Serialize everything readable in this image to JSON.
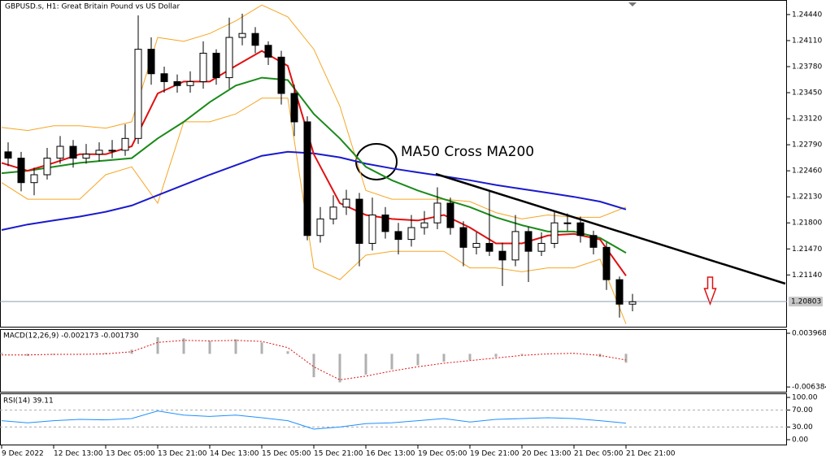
{
  "chart_data": [
    {
      "type": "candlestick",
      "title": "GBPUSD.s, H1:  Great Britain Pound vs US Dollar",
      "x": [
        2,
        6,
        10,
        14,
        18,
        22,
        26,
        30,
        34,
        38,
        42,
        46,
        50,
        54,
        58,
        62,
        66,
        70,
        74,
        78,
        82,
        86,
        90,
        94,
        98,
        102,
        106,
        110,
        114,
        118,
        122,
        126,
        130,
        134,
        138,
        142,
        146,
        150,
        154,
        158,
        162,
        166,
        170,
        174,
        178,
        182,
        186,
        190,
        194
      ],
      "open": [
        1.227,
        1.2262,
        1.2231,
        1.2241,
        1.2262,
        1.2277,
        1.2262,
        1.2267,
        1.2272,
        1.2272,
        1.2287,
        1.24,
        1.2369,
        1.2359,
        1.2354,
        1.2359,
        1.2395,
        1.2364,
        1.2415,
        1.242,
        1.2405,
        1.239,
        1.2344,
        1.2308,
        1.2164,
        1.2185,
        1.22,
        1.221,
        1.2154,
        1.219,
        1.2169,
        1.2159,
        1.2174,
        1.218,
        1.2205,
        1.2174,
        1.2149,
        1.2154,
        1.2144,
        1.2133,
        1.2169,
        1.2144,
        1.2154,
        1.218,
        1.218,
        1.2164,
        1.2149,
        1.2108,
        1.2077
      ],
      "high": [
        1.2282,
        1.227,
        1.225,
        1.2275,
        1.229,
        1.2285,
        1.228,
        1.2282,
        1.2285,
        1.2305,
        1.2443,
        1.2415,
        1.2378,
        1.2368,
        1.2372,
        1.241,
        1.24,
        1.244,
        1.2445,
        1.2428,
        1.241,
        1.2398,
        1.2355,
        1.2315,
        1.22,
        1.2215,
        1.2222,
        1.2218,
        1.2212,
        1.22,
        1.218,
        1.219,
        1.2195,
        1.2225,
        1.2212,
        1.2182,
        1.2168,
        1.222,
        1.2155,
        1.219,
        1.2175,
        1.2168,
        1.2195,
        1.2192,
        1.2188,
        1.217,
        1.2155,
        1.2112,
        1.209
      ],
      "low": [
        1.2252,
        1.222,
        1.2215,
        1.2235,
        1.2255,
        1.225,
        1.2255,
        1.2258,
        1.2262,
        1.2265,
        1.228,
        1.2355,
        1.2345,
        1.2345,
        1.2345,
        1.235,
        1.2355,
        1.235,
        1.2405,
        1.2395,
        1.238,
        1.233,
        1.229,
        1.2158,
        1.2155,
        1.2178,
        1.219,
        1.2125,
        1.2145,
        1.216,
        1.214,
        1.215,
        1.2165,
        1.2172,
        1.2165,
        1.2125,
        1.214,
        1.2138,
        1.21,
        1.2125,
        1.2105,
        1.2138,
        1.2148,
        1.217,
        1.2155,
        1.214,
        1.2095,
        1.206,
        1.2068
      ],
      "close": [
        1.2262,
        1.2231,
        1.2241,
        1.2262,
        1.2277,
        1.2262,
        1.2267,
        1.2272,
        1.2272,
        1.2287,
        1.24,
        1.2369,
        1.2359,
        1.2354,
        1.2359,
        1.2395,
        1.2364,
        1.2415,
        1.242,
        1.2405,
        1.239,
        1.2344,
        1.2308,
        1.2164,
        1.2185,
        1.22,
        1.221,
        1.2154,
        1.219,
        1.2169,
        1.2159,
        1.2174,
        1.218,
        1.2205,
        1.2174,
        1.2149,
        1.2154,
        1.2144,
        1.2133,
        1.2169,
        1.2144,
        1.2154,
        1.218,
        1.218,
        1.2164,
        1.2149,
        1.2108,
        1.2077,
        1.208
      ],
      "xlim": [
        -0.5,
        241.5
      ],
      "xticks": [
        {
          "value": 0,
          "label": "9 Dec 2022"
        },
        {
          "value": 16,
          "label": "12 Dec 13:00"
        },
        {
          "value": 32,
          "label": "13 Dec 05:00"
        },
        {
          "value": 48,
          "label": "13 Dec 21:00"
        },
        {
          "value": 64,
          "label": "14 Dec 13:00"
        },
        {
          "value": 80,
          "label": "15 Dec 05:00"
        },
        {
          "value": 96,
          "label": "15 Dec 21:00"
        },
        {
          "value": 112,
          "label": "16 Dec 13:00"
        },
        {
          "value": 128,
          "label": "19 Dec 05:00"
        },
        {
          "value": 144,
          "label": "19 Dec 21:00"
        },
        {
          "value": 160,
          "label": "20 Dec 13:00"
        },
        {
          "value": 176,
          "label": "21 Dec 05:00"
        },
        {
          "value": 192,
          "label": "21 Dec 21:00"
        }
      ],
      "ylim": [
        1.20484,
        1.24614
      ],
      "yticks": [
        {
          "value": 1.2444,
          "label": "1.24440"
        },
        {
          "value": 1.2411,
          "label": "1.24110"
        },
        {
          "value": 1.2378,
          "label": "1.23780"
        },
        {
          "value": 1.2345,
          "label": "1.23450"
        },
        {
          "value": 1.2312,
          "label": "1.23120"
        },
        {
          "value": 1.2279,
          "label": "1.22790"
        },
        {
          "value": 1.2246,
          "label": "1.22460"
        },
        {
          "value": 1.2213,
          "label": "1.22130"
        },
        {
          "value": 1.218,
          "label": "1.21800"
        },
        {
          "value": 1.2147,
          "label": "1.21470"
        },
        {
          "value": 1.2114,
          "label": "1.21140"
        }
      ],
      "current_price": 1.20803,
      "overlays": {
        "x": [
          0,
          8,
          16,
          24,
          32,
          40,
          48,
          56,
          64,
          72,
          80,
          88,
          96,
          104,
          112,
          120,
          128,
          136,
          144,
          152,
          160,
          168,
          176,
          184,
          192
        ],
        "series": [
          {
            "color": "#f5a623",
            "values": [
              1.2301,
              1.2297,
              1.2303,
              1.2303,
              1.23,
              1.2308,
              1.2415,
              1.241,
              1.242,
              1.2436,
              1.2456,
              1.2441,
              1.24,
              1.2328,
              1.2221,
              1.221,
              1.221,
              1.221,
              1.2207,
              1.2193,
              1.2185,
              1.219,
              1.2187,
              1.2187,
              1.22
            ]
          },
          {
            "color": "#f5a623",
            "values": [
              1.2231,
              1.221,
              1.221,
              1.221,
              1.2241,
              1.2251,
              1.2205,
              1.2308,
              1.2308,
              1.2318,
              1.2338,
              1.2338,
              1.2123,
              1.2108,
              1.2139,
              1.2144,
              1.2144,
              1.2144,
              1.2123,
              1.2123,
              1.2118,
              1.2123,
              1.2123,
              1.2134,
              1.2052
            ]
          },
          {
            "color": "#1a1acc",
            "values": [
              1.2171,
              1.2178,
              1.2183,
              1.2188,
              1.2194,
              1.2202,
              1.2215,
              1.2228,
              1.2241,
              1.2253,
              1.2265,
              1.227,
              1.2268,
              1.2263,
              1.2255,
              1.2249,
              1.2244,
              1.2239,
              1.2234,
              1.2228,
              1.2223,
              1.2218,
              1.2213,
              1.2207,
              1.2197
            ]
          },
          {
            "color": "#1a8a1a",
            "values": [
              1.2243,
              1.2246,
              1.2251,
              1.2256,
              1.2259,
              1.2262,
              1.2287,
              1.2308,
              1.2333,
              1.2354,
              1.2364,
              1.2361,
              1.2318,
              1.2287,
              1.2251,
              1.2234,
              1.2221,
              1.221,
              1.22,
              1.2187,
              1.2177,
              1.2169,
              1.2169,
              1.2161,
              1.2142
            ]
          },
          {
            "color": "#e01010",
            "values": [
              1.2256,
              1.2246,
              1.2256,
              1.2267,
              1.2267,
              1.2277,
              1.2344,
              1.2359,
              1.2359,
              1.2379,
              1.2398,
              1.2379,
              1.2267,
              1.2205,
              1.219,
              1.2185,
              1.2183,
              1.219,
              1.2174,
              1.2154,
              1.2154,
              1.2164,
              1.2166,
              1.2159,
              1.2113
            ]
          }
        ]
      },
      "trendline": {
        "x": [
          133.5,
          241
        ],
        "y": [
          1.2242,
          1.2103
        ]
      },
      "annotation": "MA50 Cross MA200"
    },
    {
      "type": "macd",
      "label": "MACD(12,26,9) -0.002173 -0.001730",
      "x": [
        0,
        8,
        16,
        24,
        32,
        40,
        48,
        56,
        64,
        72,
        80,
        88,
        96,
        104,
        112,
        120,
        128,
        136,
        144,
        152,
        160,
        168,
        176,
        184,
        192
      ],
      "xlim": [
        -0.5,
        241.5
      ],
      "histogram": {
        "color": "#b0b0b0",
        "values": [
          0.0002,
          -0.0004,
          -0.0002,
          0.0,
          0.0002,
          0.0008,
          0.0032,
          0.003,
          0.0025,
          0.0028,
          0.0022,
          0.0005,
          -0.0045,
          -0.0055,
          -0.004,
          -0.003,
          -0.0022,
          -0.0015,
          -0.0012,
          -0.0006,
          -0.0002,
          0.0,
          0.0001,
          -0.0006,
          -0.0017
        ]
      },
      "signal": {
        "color": "#e01010",
        "values": [
          -0.0002,
          -0.0002,
          -0.0001,
          -0.0001,
          0.0,
          0.0004,
          0.0022,
          0.0026,
          0.0025,
          0.0026,
          0.0024,
          0.0012,
          -0.0025,
          -0.005,
          -0.0043,
          -0.0033,
          -0.0025,
          -0.0018,
          -0.0013,
          -0.0008,
          -0.0003,
          0.0,
          0.0001,
          -0.0003,
          -0.0012
        ]
      },
      "ylim": [
        -0.0073,
        0.0046
      ],
      "yticks": [
        0.003968,
        -0.006384
      ]
    },
    {
      "type": "rsi",
      "label": "RSI(14) 39.11",
      "x": [
        0,
        8,
        16,
        24,
        32,
        40,
        48,
        56,
        64,
        72,
        80,
        88,
        96,
        104,
        112,
        120,
        128,
        136,
        144,
        152,
        160,
        168,
        176,
        184,
        192
      ],
      "xlim": [
        -0.5,
        241.5
      ],
      "values": [
        45,
        40,
        45,
        48,
        47,
        50,
        68,
        58,
        55,
        58,
        52,
        45,
        25,
        30,
        38,
        40,
        45,
        50,
        42,
        48,
        50,
        52,
        50,
        45,
        39.11
      ],
      "color": "#1e90ff",
      "ylim": [
        0,
        100
      ],
      "yticks": [
        {
          "value": 100,
          "label": "100.00"
        },
        {
          "value": 70,
          "label": "70.00"
        },
        {
          "value": 30,
          "label": "30.00"
        },
        {
          "value": 0,
          "label": "0.00"
        }
      ],
      "levels": [
        70,
        30
      ]
    }
  ]
}
